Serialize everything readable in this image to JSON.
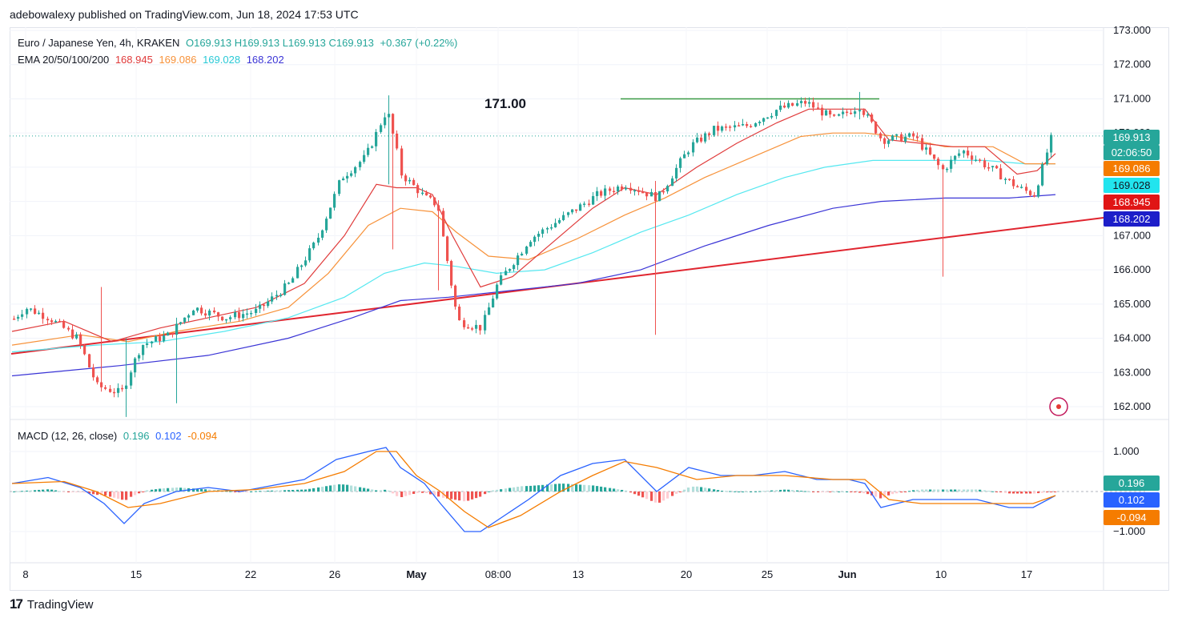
{
  "header": {
    "publisher_line": "adebowalexy published on TradingView.com, Jun 18, 2024 17:53 UTC"
  },
  "legend": {
    "symbol": "Euro / Japanese Yen, 4h, KRAKEN",
    "ohlc": "O169.913  H169.913  L169.913  C169.913",
    "change": "+0.367 (+0.22%)",
    "ema_label": "EMA 20/50/100/200",
    "ema20": "168.945",
    "ema50": "169.086",
    "ema100": "169.028",
    "ema200": "168.202"
  },
  "macd_legend": {
    "label": "MACD (12, 26, close)",
    "hist": "0.196",
    "macd": "0.102",
    "signal": "-0.094"
  },
  "annotation": {
    "level_text": "171.00"
  },
  "price_tags": {
    "last": "169.913",
    "countdown": "02:06:50",
    "ema50": "169.086",
    "ema100": "169.028",
    "ema20": "168.945",
    "ema200": "168.202"
  },
  "macd_tags": {
    "hist": "0.196",
    "macd": "0.102",
    "signal": "-0.094"
  },
  "footer": {
    "brand": "TradingView"
  },
  "colors": {
    "up": "#26a69a",
    "down": "#ef5350",
    "ema20": "#e03b3b",
    "ema50": "#f7923a",
    "ema100": "#55e8f0",
    "ema200": "#3b35d6",
    "resistance": "#3a9a45",
    "trendline": "#e0252f"
  },
  "chart_data": {
    "type": "candlestick",
    "price_axis": {
      "ticks": [
        "173.000",
        "172.000",
        "171.000",
        "170.000",
        "169.000",
        "168.000",
        "167.000",
        "166.000",
        "165.000",
        "164.000",
        "163.000",
        "162.000"
      ],
      "ylim": [
        161.7,
        173.0
      ]
    },
    "macd_axis": {
      "ticks": [
        "1.000",
        "−1.000"
      ]
    },
    "x_ticks": [
      "8",
      "15",
      "22",
      "26",
      "May",
      "08:00",
      "13",
      "20",
      "25",
      "Jun",
      "10",
      "17"
    ],
    "key_levels": {
      "resistance": 171.0,
      "last": 169.913
    },
    "price_path": [
      [
        0,
        164.2
      ],
      [
        30,
        164.9
      ],
      [
        60,
        164.6
      ],
      [
        95,
        164.0
      ],
      [
        120,
        162.6
      ],
      [
        150,
        162.4
      ],
      [
        175,
        163.8
      ],
      [
        210,
        164.1
      ],
      [
        240,
        164.9
      ],
      [
        280,
        164.6
      ],
      [
        320,
        164.8
      ],
      [
        360,
        165.6
      ],
      [
        395,
        166.9
      ],
      [
        425,
        168.7
      ],
      [
        455,
        169.3
      ],
      [
        482,
        170.7
      ],
      [
        500,
        168.8
      ],
      [
        530,
        168.1
      ],
      [
        545,
        167.9
      ],
      [
        570,
        164.5
      ],
      [
        600,
        164.3
      ],
      [
        620,
        165.6
      ],
      [
        660,
        166.9
      ],
      [
        700,
        167.5
      ],
      [
        745,
        168.2
      ],
      [
        780,
        168.5
      ],
      [
        820,
        168.1
      ],
      [
        860,
        169.6
      ],
      [
        890,
        170.1
      ],
      [
        930,
        170.2
      ],
      [
        970,
        170.7
      ],
      [
        1005,
        170.9
      ],
      [
        1040,
        170.4
      ],
      [
        1072,
        170.8
      ],
      [
        1100,
        169.8
      ],
      [
        1140,
        169.9
      ],
      [
        1175,
        168.9
      ],
      [
        1200,
        169.5
      ],
      [
        1240,
        168.9
      ],
      [
        1270,
        168.4
      ],
      [
        1290,
        168.2
      ],
      [
        1312,
        169.9
      ]
    ],
    "ema20": [
      [
        15,
        164.2
      ],
      [
        80,
        164.5
      ],
      [
        140,
        163.9
      ],
      [
        200,
        164.3
      ],
      [
        260,
        164.6
      ],
      [
        320,
        164.9
      ],
      [
        380,
        165.6
      ],
      [
        430,
        167.0
      ],
      [
        470,
        168.5
      ],
      [
        495,
        168.4
      ],
      [
        520,
        168.4
      ],
      [
        540,
        168.2
      ],
      [
        565,
        167.0
      ],
      [
        600,
        165.5
      ],
      [
        640,
        165.8
      ],
      [
        690,
        166.8
      ],
      [
        740,
        167.8
      ],
      [
        780,
        168.4
      ],
      [
        820,
        168.2
      ],
      [
        870,
        169.0
      ],
      [
        920,
        169.7
      ],
      [
        970,
        170.3
      ],
      [
        1010,
        170.7
      ],
      [
        1060,
        170.7
      ],
      [
        1080,
        170.7
      ],
      [
        1110,
        169.8
      ],
      [
        1150,
        169.7
      ],
      [
        1190,
        169.6
      ],
      [
        1230,
        169.6
      ],
      [
        1270,
        168.8
      ],
      [
        1295,
        168.9
      ],
      [
        1318,
        169.4
      ]
    ],
    "ema50": [
      [
        15,
        163.8
      ],
      [
        100,
        164.1
      ],
      [
        160,
        163.9
      ],
      [
        220,
        164.2
      ],
      [
        300,
        164.5
      ],
      [
        360,
        164.9
      ],
      [
        410,
        165.9
      ],
      [
        460,
        167.3
      ],
      [
        500,
        167.8
      ],
      [
        540,
        167.7
      ],
      [
        570,
        167.1
      ],
      [
        610,
        166.4
      ],
      [
        660,
        166.3
      ],
      [
        720,
        166.9
      ],
      [
        780,
        167.6
      ],
      [
        830,
        168.1
      ],
      [
        880,
        168.7
      ],
      [
        940,
        169.3
      ],
      [
        1000,
        169.9
      ],
      [
        1040,
        170.0
      ],
      [
        1080,
        170.0
      ],
      [
        1120,
        169.9
      ],
      [
        1180,
        169.6
      ],
      [
        1240,
        169.6
      ],
      [
        1280,
        169.1
      ],
      [
        1318,
        169.1
      ]
    ],
    "ema100": [
      [
        15,
        163.6
      ],
      [
        120,
        163.8
      ],
      [
        200,
        163.9
      ],
      [
        280,
        164.2
      ],
      [
        360,
        164.6
      ],
      [
        430,
        165.2
      ],
      [
        480,
        165.9
      ],
      [
        530,
        166.2
      ],
      [
        570,
        166.1
      ],
      [
        620,
        165.9
      ],
      [
        680,
        166.0
      ],
      [
        740,
        166.5
      ],
      [
        800,
        167.1
      ],
      [
        860,
        167.6
      ],
      [
        920,
        168.2
      ],
      [
        980,
        168.7
      ],
      [
        1030,
        169.0
      ],
      [
        1090,
        169.2
      ],
      [
        1160,
        169.2
      ],
      [
        1230,
        169.2
      ],
      [
        1280,
        169.1
      ],
      [
        1318,
        169.1
      ]
    ],
    "ema200": [
      [
        15,
        162.9
      ],
      [
        150,
        163.2
      ],
      [
        260,
        163.5
      ],
      [
        360,
        164.0
      ],
      [
        440,
        164.6
      ],
      [
        500,
        165.1
      ],
      [
        560,
        165.2
      ],
      [
        640,
        165.4
      ],
      [
        720,
        165.6
      ],
      [
        800,
        166.0
      ],
      [
        880,
        166.7
      ],
      [
        960,
        167.3
      ],
      [
        1040,
        167.8
      ],
      [
        1100,
        168.0
      ],
      [
        1180,
        168.1
      ],
      [
        1260,
        168.1
      ],
      [
        1318,
        168.2
      ]
    ],
    "macd_path": [
      [
        15,
        0.2
      ],
      [
        60,
        0.35
      ],
      [
        100,
        0.1
      ],
      [
        130,
        -0.3
      ],
      [
        155,
        -0.8
      ],
      [
        180,
        -0.3
      ],
      [
        220,
        0.0
      ],
      [
        260,
        0.1
      ],
      [
        300,
        0.0
      ],
      [
        340,
        0.15
      ],
      [
        380,
        0.3
      ],
      [
        420,
        0.8
      ],
      [
        460,
        1.0
      ],
      [
        482,
        1.1
      ],
      [
        500,
        0.6
      ],
      [
        530,
        0.2
      ],
      [
        550,
        -0.3
      ],
      [
        580,
        -1.0
      ],
      [
        600,
        -1.0
      ],
      [
        630,
        -0.6
      ],
      [
        660,
        -0.2
      ],
      [
        700,
        0.4
      ],
      [
        740,
        0.7
      ],
      [
        780,
        0.8
      ],
      [
        820,
        0.0
      ],
      [
        860,
        0.6
      ],
      [
        900,
        0.4
      ],
      [
        940,
        0.4
      ],
      [
        980,
        0.5
      ],
      [
        1020,
        0.3
      ],
      [
        1060,
        0.3
      ],
      [
        1080,
        0.2
      ],
      [
        1100,
        -0.4
      ],
      [
        1140,
        -0.2
      ],
      [
        1180,
        -0.2
      ],
      [
        1220,
        -0.2
      ],
      [
        1260,
        -0.4
      ],
      [
        1290,
        -0.4
      ],
      [
        1318,
        -0.1
      ]
    ],
    "signal_path": [
      [
        15,
        0.2
      ],
      [
        80,
        0.25
      ],
      [
        120,
        0.0
      ],
      [
        160,
        -0.4
      ],
      [
        200,
        -0.3
      ],
      [
        260,
        0.0
      ],
      [
        320,
        0.05
      ],
      [
        380,
        0.2
      ],
      [
        430,
        0.5
      ],
      [
        470,
        1.0
      ],
      [
        495,
        1.0
      ],
      [
        520,
        0.4
      ],
      [
        550,
        0.0
      ],
      [
        580,
        -0.5
      ],
      [
        610,
        -0.9
      ],
      [
        650,
        -0.6
      ],
      [
        700,
        0.0
      ],
      [
        740,
        0.4
      ],
      [
        780,
        0.75
      ],
      [
        820,
        0.6
      ],
      [
        870,
        0.3
      ],
      [
        920,
        0.4
      ],
      [
        980,
        0.4
      ],
      [
        1040,
        0.3
      ],
      [
        1080,
        0.3
      ],
      [
        1110,
        -0.2
      ],
      [
        1150,
        -0.3
      ],
      [
        1200,
        -0.3
      ],
      [
        1250,
        -0.3
      ],
      [
        1290,
        -0.3
      ],
      [
        1318,
        -0.1
      ]
    ],
    "macd_hist": {
      "positive_bars": 80,
      "negative_bars": 40
    }
  }
}
